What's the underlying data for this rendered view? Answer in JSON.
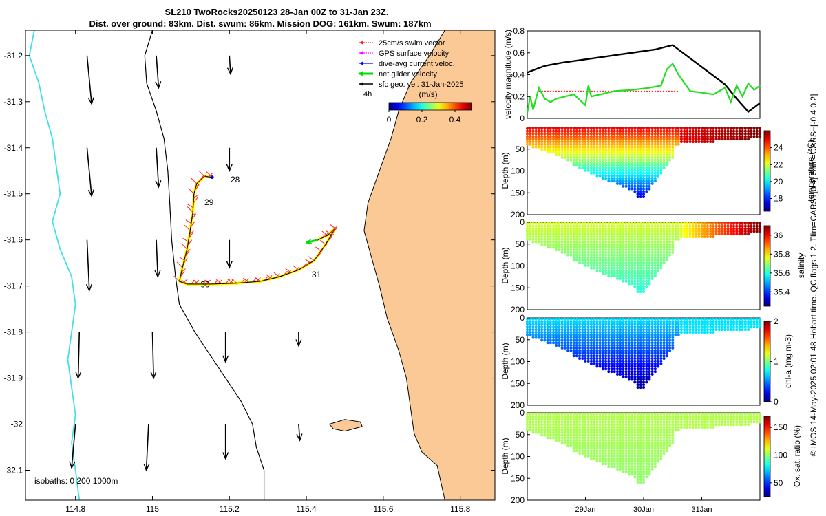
{
  "header": {
    "line1": "SL210 TwoRocks20250123 28-Jan 00Z to 31-Jan 23Z.",
    "line2": "Dist. over ground: 83km. Dist. swum: 86km. Mission DOG: 161km. Swum: 187km"
  },
  "footer": {
    "vertical_note": "© IMOS 14-May-2025 02:01:48 Hobart time. QC flags 1  2. Tlim=CARS+[0 4] Slim=CARS+[-0.4 0.2]"
  },
  "colors": {
    "land": "#fbc996",
    "isobath": "#40e0e8",
    "coast": "#000000",
    "swim": "#ff2020",
    "gps": "#ff00ff",
    "dive": "#0000ff",
    "net": "#00dd00",
    "track": "#ffff00",
    "velocity_line": "#000000",
    "velocity_glider": "#22dd22",
    "velocity_swim": "#ff0000"
  },
  "chart_data": [
    {
      "id": "map",
      "type": "scatter",
      "title": "",
      "xlabel": "",
      "ylabel": "",
      "xlim": [
        114.67,
        115.89
      ],
      "ylim": [
        -32.165,
        -31.145
      ],
      "x_ticks": [
        114.8,
        115,
        115.2,
        115.4,
        115.6,
        115.8
      ],
      "x_tick_labels": [
        "114.8",
        "115",
        "115.2",
        "115.4",
        "115.6",
        "115.8"
      ],
      "y_ticks": [
        -31.2,
        -31.3,
        -31.4,
        -31.5,
        -31.6,
        -31.7,
        -31.8,
        -31.9,
        -32,
        -32.1
      ],
      "y_tick_labels": [
        "-31.2",
        "-31.3",
        "-31.4",
        "-31.5",
        "-31.6",
        "-31.7",
        "-31.8",
        "-31.9",
        "-32",
        "-32.1"
      ],
      "legend": {
        "position": "top-right",
        "entries": [
          "25cm/s swim vector",
          "GPS surface velocity",
          "dive-avg current veloc.",
          "net glider velocity",
          "sfc geo. vel. 31-Jan-2025"
        ],
        "time_step": "4h"
      },
      "colorbar": {
        "title": "(m/s)",
        "ticks": [
          0,
          0.2,
          0.4
        ],
        "tick_labels": [
          "0",
          "0.2",
          "0.4"
        ],
        "range": [
          0,
          0.5
        ]
      },
      "isobath_label": "isobaths: 0   200  1000m",
      "day_labels": [
        {
          "text": "28",
          "lon": 115.203,
          "lat": -31.469
        },
        {
          "text": "29",
          "lon": 115.135,
          "lat": -31.518
        },
        {
          "text": "30",
          "lon": 115.125,
          "lat": -31.697
        },
        {
          "text": "31",
          "lon": 115.414,
          "lat": -31.675
        }
      ],
      "track": [
        {
          "lon": 115.155,
          "lat": -31.464
        },
        {
          "lon": 115.135,
          "lat": -31.462
        },
        {
          "lon": 115.115,
          "lat": -31.478
        },
        {
          "lon": 115.108,
          "lat": -31.5
        },
        {
          "lon": 115.105,
          "lat": -31.54
        },
        {
          "lon": 115.098,
          "lat": -31.58
        },
        {
          "lon": 115.09,
          "lat": -31.62
        },
        {
          "lon": 115.078,
          "lat": -31.66
        },
        {
          "lon": 115.07,
          "lat": -31.69
        },
        {
          "lon": 115.09,
          "lat": -31.696
        },
        {
          "lon": 115.15,
          "lat": -31.696
        },
        {
          "lon": 115.22,
          "lat": -31.694
        },
        {
          "lon": 115.28,
          "lat": -31.69
        },
        {
          "lon": 115.33,
          "lat": -31.68
        },
        {
          "lon": 115.38,
          "lat": -31.665
        },
        {
          "lon": 115.42,
          "lat": -31.645
        },
        {
          "lon": 115.45,
          "lat": -31.61
        },
        {
          "lon": 115.475,
          "lat": -31.575
        },
        {
          "lon": 115.455,
          "lat": -31.59
        },
        {
          "lon": 115.43,
          "lat": -31.6
        }
      ],
      "net_velocity": {
        "lon": 115.43,
        "lat": -31.6,
        "dlon": -0.03,
        "dlat": -0.006
      },
      "geo_vectors": [
        {
          "lon": 114.83,
          "lat": -31.2,
          "dlon": 0.012,
          "dlat": -0.105
        },
        {
          "lon": 115.01,
          "lat": -31.2,
          "dlon": 0.006,
          "dlat": -0.07
        },
        {
          "lon": 115.2,
          "lat": -31.2,
          "dlon": 0.003,
          "dlat": -0.04
        },
        {
          "lon": 114.83,
          "lat": -31.4,
          "dlon": 0.012,
          "dlat": -0.105
        },
        {
          "lon": 115.01,
          "lat": -31.4,
          "dlon": 0.006,
          "dlat": -0.085
        },
        {
          "lon": 115.2,
          "lat": -31.4,
          "dlon": 0.0,
          "dlat": -0.05
        },
        {
          "lon": 114.83,
          "lat": -31.6,
          "dlon": 0.006,
          "dlat": -0.11
        },
        {
          "lon": 115.01,
          "lat": -31.6,
          "dlon": 0.004,
          "dlat": -0.08
        },
        {
          "lon": 115.2,
          "lat": -31.6,
          "dlon": 0.0,
          "dlat": -0.06
        },
        {
          "lon": 114.81,
          "lat": -31.8,
          "dlon": -0.003,
          "dlat": -0.1
        },
        {
          "lon": 115.0,
          "lat": -31.8,
          "dlon": 0.003,
          "dlat": -0.1
        },
        {
          "lon": 115.19,
          "lat": -31.8,
          "dlon": 0.0,
          "dlat": -0.065
        },
        {
          "lon": 115.38,
          "lat": -31.8,
          "dlon": 0.0,
          "dlat": -0.03
        },
        {
          "lon": 114.8,
          "lat": -32.0,
          "dlon": -0.01,
          "dlat": -0.095
        },
        {
          "lon": 114.99,
          "lat": -32.0,
          "dlon": -0.006,
          "dlat": -0.1
        },
        {
          "lon": 115.19,
          "lat": -32.0,
          "dlon": 0.0,
          "dlat": -0.075
        },
        {
          "lon": 115.38,
          "lat": -32.0,
          "dlon": 0.003,
          "dlat": -0.035
        }
      ],
      "coastline": [
        [
          115.76,
          -31.145
        ],
        [
          115.72,
          -31.2
        ],
        [
          115.67,
          -31.26
        ],
        [
          115.64,
          -31.32
        ],
        [
          115.62,
          -31.38
        ],
        [
          115.59,
          -31.45
        ],
        [
          115.56,
          -31.52
        ],
        [
          115.55,
          -31.58
        ],
        [
          115.57,
          -31.64
        ],
        [
          115.59,
          -31.7
        ],
        [
          115.61,
          -31.77
        ],
        [
          115.64,
          -31.84
        ],
        [
          115.66,
          -31.9
        ],
        [
          115.67,
          -31.96
        ],
        [
          115.68,
          -32.02
        ],
        [
          115.7,
          -32.06
        ],
        [
          115.74,
          -32.09
        ],
        [
          115.76,
          -32.165
        ]
      ],
      "island": [
        [
          115.46,
          -32.0
        ],
        [
          115.5,
          -31.99
        ],
        [
          115.54,
          -31.995
        ],
        [
          115.545,
          -32.005
        ],
        [
          115.5,
          -32.015
        ],
        [
          115.47,
          -32.01
        ]
      ],
      "isobath_200": [
        [
          115.0,
          -31.145
        ],
        [
          114.98,
          -31.2
        ],
        [
          114.985,
          -31.26
        ],
        [
          115.01,
          -31.32
        ],
        [
          115.03,
          -31.38
        ],
        [
          115.04,
          -31.45
        ],
        [
          115.045,
          -31.52
        ],
        [
          115.05,
          -31.6
        ],
        [
          115.06,
          -31.68
        ],
        [
          115.07,
          -31.74
        ],
        [
          115.11,
          -31.8
        ],
        [
          115.15,
          -31.85
        ],
        [
          115.19,
          -31.9
        ],
        [
          115.23,
          -31.95
        ],
        [
          115.26,
          -32.0
        ],
        [
          115.27,
          -32.05
        ],
        [
          115.29,
          -32.1
        ],
        [
          115.29,
          -32.165
        ]
      ],
      "isobath_1000": [
        [
          114.693,
          -31.145
        ],
        [
          114.68,
          -31.2
        ],
        [
          114.705,
          -31.26
        ],
        [
          114.72,
          -31.32
        ],
        [
          114.74,
          -31.38
        ],
        [
          114.75,
          -31.44
        ],
        [
          114.76,
          -31.5
        ],
        [
          114.74,
          -31.56
        ],
        [
          114.76,
          -31.62
        ],
        [
          114.79,
          -31.68
        ],
        [
          114.8,
          -31.74
        ],
        [
          114.79,
          -31.8
        ],
        [
          114.78,
          -31.86
        ],
        [
          114.79,
          -31.92
        ],
        [
          114.8,
          -31.98
        ],
        [
          114.79,
          -32.04
        ],
        [
          114.8,
          -32.1
        ],
        [
          114.81,
          -32.165
        ]
      ]
    },
    {
      "id": "velocity",
      "type": "line",
      "title": "",
      "xlabel": "",
      "ylabel": "velocity magnitude (m/s)",
      "xlim": [
        0,
        4
      ],
      "ylim": [
        0,
        0.8
      ],
      "y_ticks": [
        0,
        0.2,
        0.4,
        0.6,
        0.8
      ],
      "y_tick_labels": [
        "0",
        "0.2",
        "0.4",
        "0.6",
        "0.8"
      ],
      "series": [
        {
          "name": "sfc geo. vel.",
          "x": [
            0,
            0.1,
            0.3,
            0.6,
            1.0,
            1.4,
            1.8,
            2.2,
            2.5,
            2.8,
            3.1,
            3.4,
            3.6,
            3.8,
            4.0
          ],
          "y": [
            0.42,
            0.44,
            0.48,
            0.51,
            0.54,
            0.57,
            0.6,
            0.63,
            0.67,
            0.55,
            0.43,
            0.31,
            0.18,
            0.06,
            0.14
          ]
        },
        {
          "name": "net glider velocity",
          "x": [
            0,
            0.05,
            0.1,
            0.2,
            0.3,
            0.4,
            0.5,
            0.8,
            1.0,
            1.05,
            1.1,
            1.5,
            1.8,
            2.1,
            2.3,
            2.4,
            2.5,
            2.6,
            2.8,
            3.2,
            3.4,
            3.5,
            3.6,
            3.7,
            3.8,
            3.9,
            4.0
          ],
          "y": [
            0.05,
            0.2,
            0.08,
            0.28,
            0.18,
            0.15,
            0.18,
            0.22,
            0.12,
            0.3,
            0.2,
            0.25,
            0.26,
            0.28,
            0.3,
            0.45,
            0.5,
            0.4,
            0.25,
            0.22,
            0.28,
            0.15,
            0.3,
            0.2,
            0.32,
            0.26,
            0.3
          ]
        },
        {
          "name": "25cm/s swim vector",
          "x": [
            0.2,
            2.6
          ],
          "y": [
            0.25,
            0.25
          ]
        }
      ]
    },
    {
      "id": "temperature",
      "type": "scatter",
      "ylabel": "Depth (m)",
      "colorbar_label": "temperature (°C)",
      "colorbar_ticks": [
        18,
        20,
        22,
        24
      ],
      "colorbar_range": [
        16.5,
        26
      ],
      "xlim": [
        0,
        4
      ],
      "ylim": [
        200,
        0
      ],
      "y_ticks": [
        50,
        100,
        150,
        200
      ],
      "y_tick_labels": [
        "50",
        "100",
        "150",
        "200"
      ],
      "surface_value": 25,
      "deep_value": 17.5,
      "warm_tail": 26
    },
    {
      "id": "salinity",
      "type": "scatter",
      "ylabel": "Depth (m)",
      "colorbar_label": "salinity",
      "colorbar_ticks": [
        35.4,
        35.6,
        35.8,
        36
      ],
      "colorbar_range": [
        35.25,
        36.1
      ],
      "xlim": [
        0,
        4
      ],
      "ylim": [
        200,
        0
      ],
      "y_ticks": [
        0,
        50,
        100,
        150,
        200
      ],
      "y_tick_labels": [
        "0",
        "50",
        "100",
        "150",
        "200"
      ],
      "surface_value": 35.75,
      "deep_value": 35.6,
      "warm_tail": 36.1
    },
    {
      "id": "chla",
      "type": "scatter",
      "ylabel": "Depth (m)",
      "colorbar_label": "chl-a (mg m-3)",
      "colorbar_ticks": [
        0,
        1,
        2
      ],
      "colorbar_range": [
        0,
        2
      ],
      "xlim": [
        0,
        4
      ],
      "ylim": [
        200,
        0
      ],
      "y_ticks": [
        0,
        50,
        100,
        150,
        200
      ],
      "y_tick_labels": [
        "0",
        "50",
        "100",
        "150",
        "200"
      ],
      "surface_value": 0.7,
      "deep_value": 0.05,
      "warm_tail": 0.7
    },
    {
      "id": "oxygen",
      "type": "scatter",
      "ylabel": "Depth (m)",
      "colorbar_label": "Ox. sat. ratio (%)",
      "colorbar_ticks": [
        50,
        100,
        150
      ],
      "colorbar_range": [
        25,
        170
      ],
      "xlim": [
        0,
        4
      ],
      "ylim": [
        200,
        0
      ],
      "y_ticks": [
        0,
        50,
        100,
        150,
        200
      ],
      "y_tick_labels": [
        "0",
        "50",
        "100",
        "150",
        "200"
      ],
      "surface_value": 105,
      "deep_value": 100,
      "warm_tail": 105,
      "x_ticks": [
        1,
        2,
        3
      ],
      "x_tick_labels": [
        "29Jan",
        "30Jan",
        "31Jan"
      ]
    }
  ]
}
